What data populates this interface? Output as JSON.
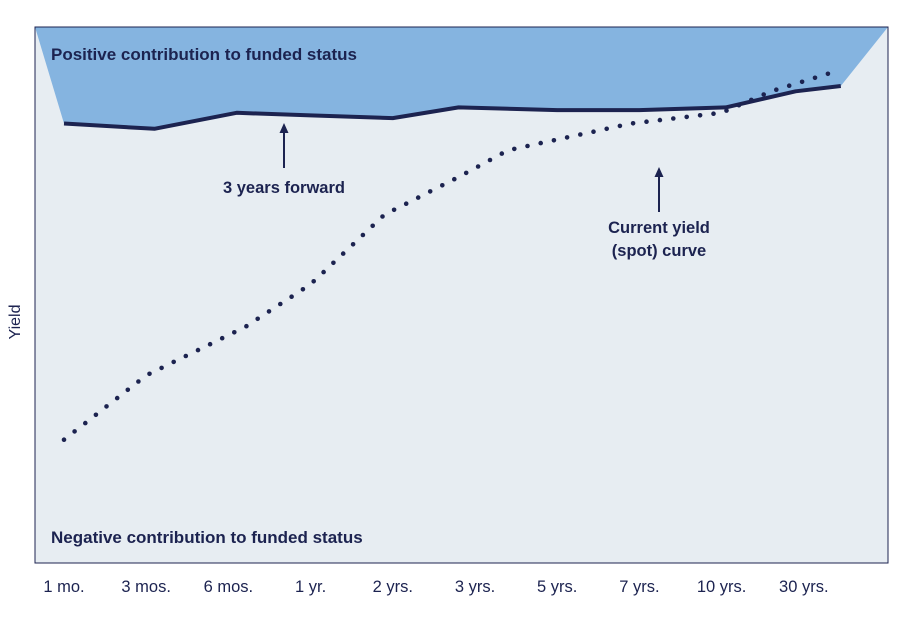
{
  "chart_data": {
    "type": "line",
    "title": "",
    "xlabel": "",
    "ylabel": "Yield",
    "categories": [
      "1 mo.",
      "3 mos.",
      "6 mos.",
      "1 yr.",
      "2 yrs.",
      "3 yrs.",
      "5 yrs.",
      "7 yrs.",
      "10 yrs.",
      "30 yrs."
    ],
    "ylim": [
      0,
      100
    ],
    "grid": false,
    "legend": "none",
    "series": [
      {
        "name": "3 years forward",
        "style": "solid",
        "x": [
          0,
          1.1,
          2.1,
          3.0,
          4.0,
          4.8,
          6.0,
          7.0,
          8.05,
          8.9,
          9.45
        ],
        "values": [
          82,
          81,
          84,
          83.5,
          83,
          85,
          84.5,
          84.5,
          85,
          88,
          89
        ]
      },
      {
        "name": "Current yield (spot) curve",
        "style": "dotted",
        "x": [
          0,
          1.0,
          2.2,
          3.0,
          3.9,
          4.8,
          5.4,
          6.9,
          8.0,
          8.6,
          9.45
        ],
        "values": [
          23,
          35,
          44,
          52,
          65,
          72,
          77,
          82,
          84,
          88,
          92
        ]
      }
    ],
    "regions": {
      "positive": "Positive contribution to funded status",
      "negative": "Negative contribution to funded status"
    },
    "annotations": {
      "forward": "3 years forward",
      "spot_line1": "Current yield",
      "spot_line2": "(spot) curve"
    },
    "colors": {
      "positive_fill": "#85b4e0",
      "negative_fill": "#e7edf2",
      "line": "#1c2350"
    }
  }
}
